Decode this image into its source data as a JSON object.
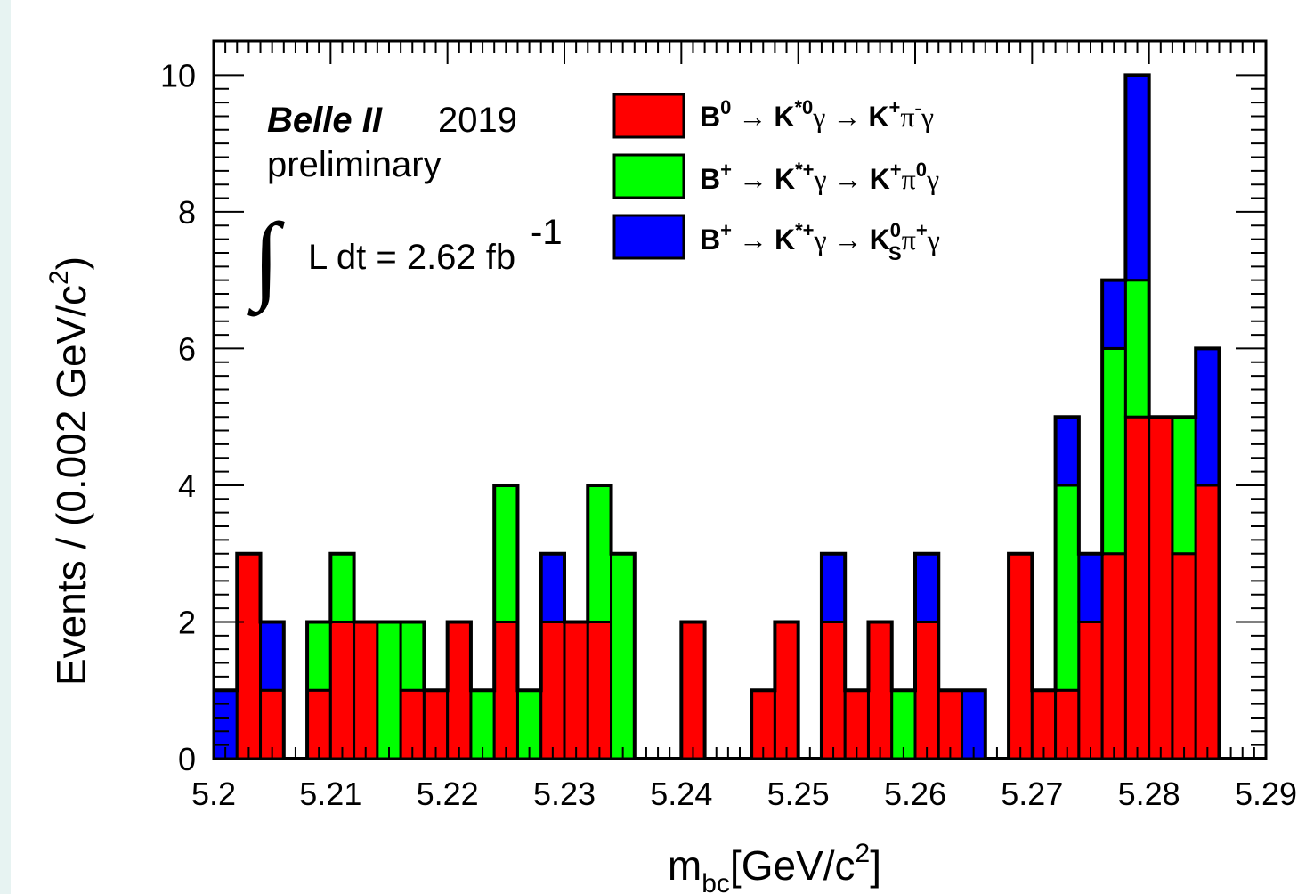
{
  "chart_data": {
    "type": "bar",
    "stacked": true,
    "xlabel": "m_bc[GeV/c^2]",
    "ylabel": "Events / (0.002 GeV/c^2)",
    "xlim": [
      5.2,
      5.29
    ],
    "ylim": [
      0,
      10.5
    ],
    "bin_width": 0.002,
    "x_ticks": [
      "5.2",
      "5.21",
      "5.22",
      "5.23",
      "5.24",
      "5.25",
      "5.26",
      "5.27",
      "5.28",
      "5.29"
    ],
    "y_ticks": [
      "0",
      "2",
      "4",
      "6",
      "8",
      "10"
    ],
    "bin_starts": [
      5.2,
      5.202,
      5.204,
      5.206,
      5.208,
      5.21,
      5.212,
      5.214,
      5.216,
      5.218,
      5.22,
      5.222,
      5.224,
      5.226,
      5.228,
      5.23,
      5.232,
      5.234,
      5.236,
      5.238,
      5.24,
      5.242,
      5.244,
      5.246,
      5.248,
      5.25,
      5.252,
      5.254,
      5.256,
      5.258,
      5.26,
      5.262,
      5.264,
      5.266,
      5.268,
      5.27,
      5.272,
      5.274,
      5.276,
      5.278,
      5.28,
      5.282,
      5.284,
      5.286,
      5.288
    ],
    "series": [
      {
        "key": "k0",
        "color": "#ff0000",
        "values": [
          0,
          3,
          1,
          0,
          1,
          2,
          2,
          0,
          1,
          1,
          2,
          0,
          2,
          0,
          2,
          2,
          2,
          0,
          0,
          0,
          2,
          0,
          0,
          1,
          2,
          0,
          2,
          1,
          2,
          0,
          2,
          1,
          0,
          0,
          3,
          1,
          1,
          2,
          3,
          5,
          5,
          3,
          4,
          0,
          0
        ]
      },
      {
        "key": "kp",
        "color": "#00ff00",
        "values": [
          0,
          0,
          0,
          0,
          1,
          1,
          0,
          2,
          1,
          0,
          0,
          1,
          2,
          1,
          0,
          0,
          2,
          3,
          0,
          0,
          0,
          0,
          0,
          0,
          0,
          0,
          0,
          0,
          0,
          1,
          0,
          0,
          0,
          0,
          0,
          0,
          3,
          0,
          3,
          2,
          0,
          2,
          0,
          0,
          0
        ]
      },
      {
        "key": "ks",
        "color": "#0000ff",
        "values": [
          1,
          0,
          1,
          0,
          0,
          0,
          0,
          0,
          0,
          0,
          0,
          0,
          0,
          0,
          1,
          0,
          0,
          0,
          0,
          0,
          0,
          0,
          0,
          0,
          0,
          0,
          1,
          0,
          0,
          0,
          1,
          0,
          1,
          0,
          0,
          0,
          1,
          1,
          1,
          3,
          0,
          0,
          2,
          0,
          0
        ]
      }
    ],
    "legend": [
      {
        "color": "#ff0000",
        "decay": "B0 → K*0γ → K+π-γ"
      },
      {
        "color": "#00ff00",
        "decay": "B+ → K*+γ → K+π0γ"
      },
      {
        "color": "#0000ff",
        "decay": "B+ → K*+γ → KS0π+γ"
      }
    ],
    "legend_position": "top-center",
    "annotation": {
      "experiment": "Belle II",
      "year": "2019",
      "status": "preliminary",
      "luminosity": "L dt = 2.62 fb",
      "luminosity_exp": "-1"
    }
  }
}
